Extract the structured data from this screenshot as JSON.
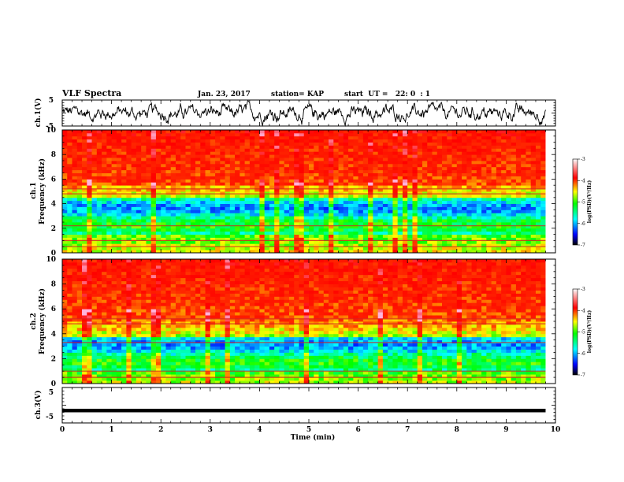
{
  "header": {
    "title": "VLF Spectra",
    "date": "Jan. 23, 2017",
    "station": "station= KAP",
    "start": "start  UT =   22: 0  : 1"
  },
  "panels": {
    "ch1_wave_label": "ch.1(V)",
    "ch1_spec_label": "ch.1\nFrequency (kHz)",
    "ch2_spec_label": "ch.2\nFrequency (kHz)",
    "ch3_wave_label": "ch.3(V)"
  },
  "colorbar": {
    "label": "log(PSD)(V²/Hz)",
    "ticks": [
      "-3",
      "-4",
      "-5",
      "-6",
      "-7"
    ],
    "range": [
      -7,
      -3
    ]
  },
  "colors": {
    "spectrum_scale": [
      "#000080",
      "#0000ff",
      "#00ffff",
      "#00ff00",
      "#ffff00",
      "#ff8000",
      "#ff0000",
      "#ff66cc",
      "#ffffff"
    ]
  },
  "chart_data": [
    {
      "type": "line",
      "name": "ch.1 waveform",
      "ylabel": "ch.1(V)",
      "ylim": [
        -5,
        5
      ],
      "yticks": [
        "5",
        "-5"
      ],
      "xlim": [
        0,
        10
      ]
    },
    {
      "type": "heatmap",
      "name": "ch.1 spectrogram",
      "ylabel": "Frequency (kHz)",
      "ylim": [
        0,
        10
      ],
      "yticks": [
        "0",
        "2",
        "4",
        "6",
        "8",
        "10"
      ],
      "xlim": [
        0,
        10
      ],
      "data_xmax": 9.8,
      "low_power_band_khz": [
        1.5,
        4.5
      ],
      "horizontal_lines_khz": [
        0.5,
        1.0,
        2.2,
        4.8,
        5.2
      ]
    },
    {
      "type": "heatmap",
      "name": "ch.2 spectrogram",
      "ylabel": "Frequency (kHz)",
      "ylim": [
        0,
        10
      ],
      "yticks": [
        "0",
        "2",
        "4",
        "6",
        "8",
        "10"
      ],
      "xlim": [
        0,
        10
      ],
      "data_xmax": 9.8,
      "low_power_band_khz": [
        1.0,
        3.8
      ],
      "horizontal_lines_khz": [
        0.5,
        1.0,
        3.3,
        4.8,
        5.2
      ]
    },
    {
      "type": "line",
      "name": "ch.3 waveform",
      "ylabel": "ch.3(V)",
      "ylim": [
        -5,
        5
      ],
      "yticks": [
        "5",
        "-5"
      ],
      "xlim": [
        0,
        10
      ],
      "level": -1.5
    }
  ],
  "xaxis": {
    "label": "Time (min)",
    "ticks": [
      "0",
      "1",
      "2",
      "3",
      "4",
      "5",
      "6",
      "7",
      "8",
      "9",
      "10"
    ]
  }
}
